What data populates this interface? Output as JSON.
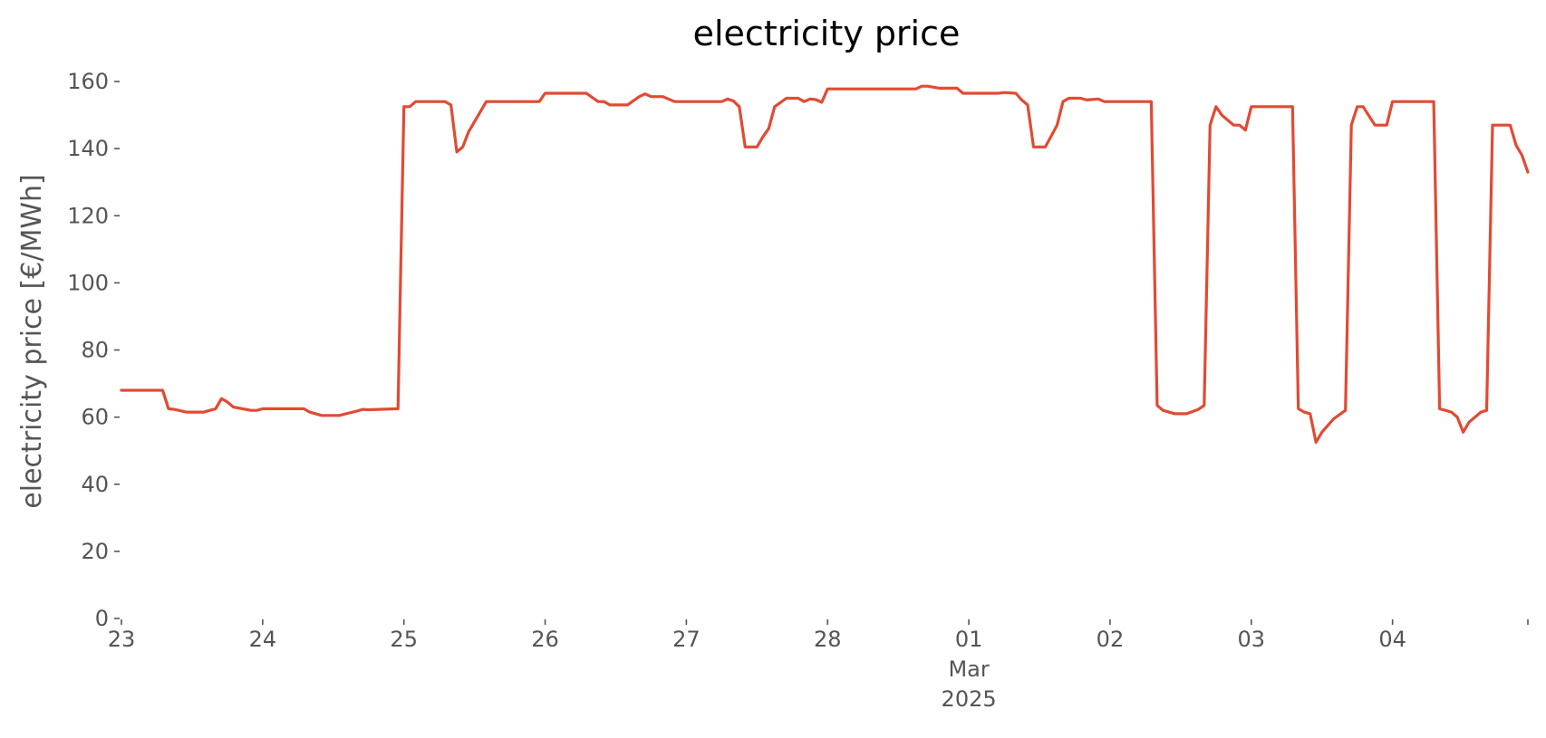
{
  "chart_data": {
    "type": "line",
    "title": "electricity price",
    "xlabel": "",
    "ylabel": "electricity price [€/MWh]",
    "ylim": [
      0,
      160
    ],
    "xlim": [
      "2025-02-23T00:00",
      "2025-03-04T23:00"
    ],
    "grid": false,
    "legend": "none",
    "yticks": [
      0,
      20,
      40,
      60,
      80,
      100,
      120,
      140,
      160
    ],
    "xticks": [
      {
        "at": "2025-02-23T00:00",
        "label": "23"
      },
      {
        "at": "2025-02-24T00:00",
        "label": "24"
      },
      {
        "at": "2025-02-25T00:00",
        "label": "25"
      },
      {
        "at": "2025-02-26T00:00",
        "label": "26"
      },
      {
        "at": "2025-02-27T00:00",
        "label": "27"
      },
      {
        "at": "2025-02-28T00:00",
        "label": "28"
      },
      {
        "at": "2025-03-01T00:00",
        "label": "01"
      },
      {
        "at": "2025-03-02T00:00",
        "label": "02"
      },
      {
        "at": "2025-03-03T00:00",
        "label": "03"
      },
      {
        "at": "2025-03-04T00:00",
        "label": "04"
      }
    ],
    "x_secondary_label": [
      "Mar",
      "2025"
    ],
    "series": [
      {
        "color": "#E24A33",
        "points": [
          [
            "2025-02-23T00:00",
            68
          ],
          [
            "2025-02-23T07:00",
            68
          ],
          [
            "2025-02-23T08:00",
            62.5
          ],
          [
            "2025-02-23T09:00",
            62.3
          ],
          [
            "2025-02-23T11:00",
            61.5
          ],
          [
            "2025-02-23T14:00",
            61.5
          ],
          [
            "2025-02-23T16:00",
            62.5
          ],
          [
            "2025-02-23T17:00",
            65.5
          ],
          [
            "2025-02-23T18:00",
            64.5
          ],
          [
            "2025-02-23T19:00",
            63
          ],
          [
            "2025-02-23T22:00",
            62
          ],
          [
            "2025-02-23T23:00",
            62
          ],
          [
            "2025-02-24T00:00",
            62.5
          ],
          [
            "2025-02-24T07:00",
            62.5
          ],
          [
            "2025-02-24T08:00",
            61.5
          ],
          [
            "2025-02-24T10:00",
            60.5
          ],
          [
            "2025-02-24T13:00",
            60.5
          ],
          [
            "2025-02-24T16:00",
            61.8
          ],
          [
            "2025-02-24T17:00",
            62.3
          ],
          [
            "2025-02-24T18:00",
            62.2
          ],
          [
            "2025-02-24T23:00",
            62.5
          ],
          [
            "2025-02-25T00:00",
            152.5
          ],
          [
            "2025-02-25T01:00",
            152.5
          ],
          [
            "2025-02-25T02:00",
            154
          ],
          [
            "2025-02-25T07:00",
            154
          ],
          [
            "2025-02-25T08:00",
            153
          ],
          [
            "2025-02-25T09:00",
            139
          ],
          [
            "2025-02-25T10:00",
            140.5
          ],
          [
            "2025-02-25T11:00",
            145
          ],
          [
            "2025-02-25T14:00",
            154
          ],
          [
            "2025-02-25T23:00",
            154
          ],
          [
            "2025-02-26T00:00",
            156.5
          ],
          [
            "2025-02-26T07:00",
            156.5
          ],
          [
            "2025-02-26T09:00",
            154
          ],
          [
            "2025-02-26T10:00",
            154
          ],
          [
            "2025-02-26T11:00",
            153
          ],
          [
            "2025-02-26T14:00",
            153
          ],
          [
            "2025-02-26T16:00",
            155.5
          ],
          [
            "2025-02-26T17:00",
            156.3
          ],
          [
            "2025-02-26T18:00",
            155.5
          ],
          [
            "2025-02-26T20:00",
            155.5
          ],
          [
            "2025-02-26T22:00",
            154
          ],
          [
            "2025-02-27T06:00",
            154
          ],
          [
            "2025-02-27T07:00",
            154.8
          ],
          [
            "2025-02-27T08:00",
            154.2
          ],
          [
            "2025-02-27T09:00",
            152.5
          ],
          [
            "2025-02-27T10:00",
            140.5
          ],
          [
            "2025-02-27T12:00",
            140.5
          ],
          [
            "2025-02-27T13:00",
            143.5
          ],
          [
            "2025-02-27T14:00",
            146
          ],
          [
            "2025-02-27T15:00",
            152.5
          ],
          [
            "2025-02-27T17:00",
            155
          ],
          [
            "2025-02-27T19:00",
            155
          ],
          [
            "2025-02-27T20:00",
            154
          ],
          [
            "2025-02-27T21:00",
            154.8
          ],
          [
            "2025-02-27T22:00",
            154.6
          ],
          [
            "2025-02-27T23:00",
            153.8
          ],
          [
            "2025-02-28T00:00",
            157.8
          ],
          [
            "2025-02-28T15:00",
            157.8
          ],
          [
            "2025-02-28T16:00",
            158.6
          ],
          [
            "2025-02-28T17:00",
            158.6
          ],
          [
            "2025-02-28T19:00",
            158
          ],
          [
            "2025-02-28T22:00",
            158
          ],
          [
            "2025-02-28T23:00",
            156.5
          ],
          [
            "2025-03-01T05:00",
            156.5
          ],
          [
            "2025-03-01T06:00",
            156.7
          ],
          [
            "2025-03-01T08:00",
            156.5
          ],
          [
            "2025-03-01T09:00",
            154.5
          ],
          [
            "2025-03-01T10:00",
            153
          ],
          [
            "2025-03-01T11:00",
            140.5
          ],
          [
            "2025-03-01T13:00",
            140.5
          ],
          [
            "2025-03-01T15:00",
            147
          ],
          [
            "2025-03-01T16:00",
            154
          ],
          [
            "2025-03-01T17:00",
            155
          ],
          [
            "2025-03-01T19:00",
            155
          ],
          [
            "2025-03-01T20:00",
            154.5
          ],
          [
            "2025-03-01T22:00",
            154.8
          ],
          [
            "2025-03-01T23:00",
            154
          ],
          [
            "2025-03-02T07:00",
            154
          ],
          [
            "2025-03-02T08:00",
            63.5
          ],
          [
            "2025-03-02T09:00",
            62
          ],
          [
            "2025-03-02T11:00",
            61
          ],
          [
            "2025-03-02T13:00",
            61
          ],
          [
            "2025-03-02T15:00",
            62.3
          ],
          [
            "2025-03-02T16:00",
            63.5
          ],
          [
            "2025-03-02T17:00",
            147
          ],
          [
            "2025-03-02T18:00",
            152.5
          ],
          [
            "2025-03-02T19:00",
            150
          ],
          [
            "2025-03-02T21:00",
            147
          ],
          [
            "2025-03-02T22:00",
            147
          ],
          [
            "2025-03-02T23:00",
            145.5
          ],
          [
            "2025-03-03T00:00",
            152.5
          ],
          [
            "2025-03-03T07:00",
            152.5
          ],
          [
            "2025-03-03T08:00",
            62.5
          ],
          [
            "2025-03-03T09:00",
            61.5
          ],
          [
            "2025-03-03T10:00",
            61
          ],
          [
            "2025-03-03T11:00",
            52.5
          ],
          [
            "2025-03-03T12:00",
            55.5
          ],
          [
            "2025-03-03T14:00",
            59.5
          ],
          [
            "2025-03-03T16:00",
            62
          ],
          [
            "2025-03-03T17:00",
            147
          ],
          [
            "2025-03-03T18:00",
            152.5
          ],
          [
            "2025-03-03T19:00",
            152.5
          ],
          [
            "2025-03-03T21:00",
            147
          ],
          [
            "2025-03-03T23:00",
            147
          ],
          [
            "2025-03-04T00:00",
            154
          ],
          [
            "2025-03-04T07:00",
            154
          ],
          [
            "2025-03-04T08:00",
            62.5
          ],
          [
            "2025-03-04T09:00",
            62
          ],
          [
            "2025-03-04T10:00",
            61.5
          ],
          [
            "2025-03-04T11:00",
            60
          ],
          [
            "2025-03-04T12:00",
            55.5
          ],
          [
            "2025-03-04T13:00",
            58.5
          ],
          [
            "2025-03-04T15:00",
            61.5
          ],
          [
            "2025-03-04T16:00",
            62
          ],
          [
            "2025-03-04T17:00",
            147
          ],
          [
            "2025-03-04T20:00",
            147
          ],
          [
            "2025-03-04T21:00",
            141
          ],
          [
            "2025-03-04T22:00",
            138
          ],
          [
            "2025-03-04T23:00",
            133
          ]
        ]
      }
    ]
  }
}
